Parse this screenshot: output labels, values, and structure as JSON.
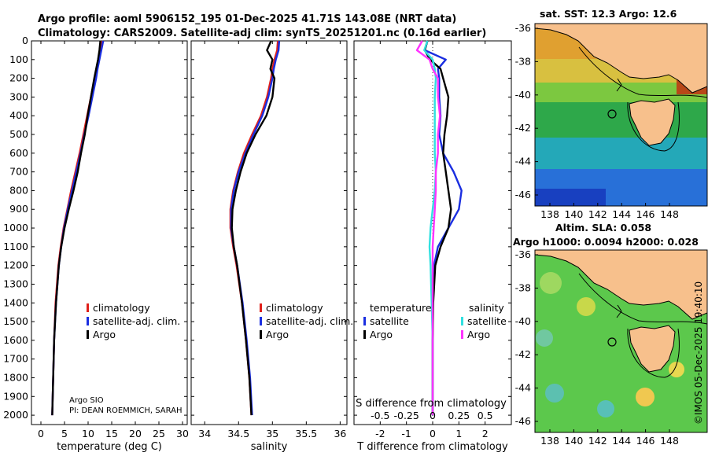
{
  "header": {
    "line1": "Argo profile: aoml 5906152_195 01-Dec-2025 41.71S 143.08E (NRT data)",
    "line2": "Climatology: CARS2009. Satellite-adj clim: synTS_20251201.nc (0.16d earlier)"
  },
  "colors": {
    "climatology": "#e0201a",
    "satellite": "#1a2ee0",
    "argo": "#000000",
    "sat_salinity": "#30e0e0",
    "argo_salinity": "#ff33ff"
  },
  "chart_data": [
    {
      "type": "line",
      "panel": "temperature",
      "xlabel": "temperature (deg C)",
      "xlim": [
        -2,
        31
      ],
      "xticks": [
        0,
        5,
        10,
        15,
        20,
        25,
        30
      ],
      "ylim": [
        2050,
        0
      ],
      "yticks": [
        0,
        100,
        200,
        300,
        400,
        500,
        600,
        700,
        800,
        900,
        1000,
        1100,
        1200,
        1300,
        1400,
        1500,
        1600,
        1700,
        1800,
        1900,
        2000
      ],
      "depth": [
        0,
        50,
        100,
        150,
        200,
        300,
        400,
        500,
        600,
        700,
        800,
        900,
        1000,
        1100,
        1200,
        1400,
        1600,
        1800,
        2000
      ],
      "series": [
        {
          "name": "climatology",
          "color": "#e0201a",
          "values": [
            12.8,
            12.6,
            12.2,
            11.8,
            11.4,
            10.6,
            9.8,
            9.0,
            8.2,
            7.3,
            6.4,
            5.6,
            4.8,
            4.2,
            3.7,
            3.1,
            2.8,
            2.6,
            2.4
          ]
        },
        {
          "name": "satellite-adj. clim.",
          "color": "#1a2ee0",
          "values": [
            13.2,
            12.8,
            12.4,
            12.0,
            11.7,
            10.9,
            10.1,
            9.2,
            8.4,
            7.5,
            6.6,
            5.7,
            4.9,
            4.3,
            3.8,
            3.2,
            2.8,
            2.6,
            2.4
          ]
        },
        {
          "name": "Argo",
          "color": "#000000",
          "values": [
            12.6,
            12.4,
            12.1,
            11.7,
            11.3,
            10.6,
            9.9,
            9.3,
            8.5,
            7.8,
            6.9,
            5.9,
            5.0,
            4.3,
            3.8,
            3.2,
            2.8,
            2.6,
            2.4
          ]
        }
      ],
      "legend": [
        "climatology",
        "satellite-adj. clim.",
        "Argo"
      ],
      "annotation_line1": "Argo SIO",
      "annotation_line2": "PI: DEAN ROEMMICH, SARAH"
    },
    {
      "type": "line",
      "panel": "salinity",
      "xlabel": "salinity",
      "xlim": [
        33.8,
        36.1
      ],
      "xticks": [
        34,
        34.5,
        35,
        35.5,
        36
      ],
      "xtick_labels": [
        "34",
        "34.5",
        "35",
        "35.5",
        "36"
      ],
      "ylim": [
        2050,
        0
      ],
      "depth": [
        0,
        50,
        100,
        150,
        200,
        300,
        400,
        500,
        600,
        700,
        800,
        900,
        1000,
        1100,
        1200,
        1400,
        1600,
        1800,
        2000
      ],
      "series": [
        {
          "name": "climatology",
          "color": "#e0201a",
          "values": [
            35.08,
            35.07,
            35.03,
            35.0,
            34.98,
            34.92,
            34.83,
            34.7,
            34.58,
            34.49,
            34.42,
            34.38,
            34.38,
            34.42,
            34.47,
            34.55,
            34.61,
            34.66,
            34.69
          ]
        },
        {
          "name": "satellite-adj. clim.",
          "color": "#1a2ee0",
          "values": [
            35.1,
            35.09,
            35.05,
            35.02,
            35.0,
            34.94,
            34.85,
            34.72,
            34.6,
            34.5,
            34.43,
            34.39,
            34.39,
            34.43,
            34.48,
            34.56,
            34.62,
            34.67,
            34.7
          ]
        },
        {
          "name": "Argo",
          "color": "#000000",
          "values": [
            34.98,
            34.92,
            35.0,
            34.97,
            35.03,
            35.0,
            34.91,
            34.75,
            34.62,
            34.53,
            34.46,
            34.41,
            34.4,
            34.43,
            34.48,
            34.55,
            34.61,
            34.66,
            34.69
          ]
        }
      ],
      "legend": [
        "climatology",
        "satellite-adj. clim.",
        "Argo"
      ]
    },
    {
      "type": "line",
      "panel": "difference",
      "xlabel": "T difference from climatology",
      "xlim": [
        -3,
        3
      ],
      "xticks": [
        -2,
        -1,
        0,
        1,
        2
      ],
      "top_axis_label": "S difference from climatology",
      "top_ticks": [
        "-0.5",
        "-0.25",
        "0",
        "0.25",
        "0.5"
      ],
      "top_tick_values": [
        -0.5,
        -0.25,
        0,
        0.25,
        0.5
      ],
      "top_xlim": [
        -0.75,
        0.75
      ],
      "ylim": [
        2050,
        0
      ],
      "depth": [
        0,
        50,
        100,
        150,
        200,
        300,
        400,
        500,
        600,
        700,
        800,
        900,
        1000,
        1100,
        1200,
        1400,
        1600,
        1800,
        2000
      ],
      "series": [
        {
          "name": "temperature satellite",
          "color": "#1a2ee0",
          "values": [
            -0.2,
            -0.3,
            0.5,
            0.2,
            0.25,
            0.25,
            0.3,
            0.25,
            0.4,
            0.8,
            1.1,
            1.0,
            0.6,
            0.2,
            0.05,
            0.0,
            0.0,
            0.0,
            0.0
          ]
        },
        {
          "name": "temperature Argo",
          "color": "#000000",
          "values": [
            -0.2,
            -0.3,
            -0.1,
            0.3,
            0.4,
            0.6,
            0.55,
            0.45,
            0.4,
            0.5,
            0.6,
            0.7,
            0.6,
            0.3,
            0.1,
            0.02,
            0.0,
            0.0,
            0.0
          ]
        },
        {
          "name": "salinity satellite",
          "color": "#30e0e0",
          "values": [
            -0.05,
            -0.08,
            0.0,
            0.02,
            0.03,
            0.02,
            0.02,
            0.02,
            0.02,
            0.03,
            0.02,
            0.0,
            -0.02,
            -0.03,
            -0.02,
            -0.01,
            0.0,
            0.0,
            0.0
          ]
        },
        {
          "name": "salinity Argo",
          "color": "#ff33ff",
          "values": [
            -0.1,
            -0.15,
            -0.03,
            0.0,
            0.05,
            0.05,
            0.07,
            0.05,
            0.05,
            0.03,
            0.03,
            0.02,
            0.01,
            0.0,
            0.0,
            0.0,
            0.0,
            0.0,
            0.0
          ]
        }
      ],
      "legend_temperature_title": "temperature",
      "legend_salinity_title": "salinity",
      "legend_temperature": [
        "satellite",
        "Argo"
      ],
      "legend_salinity": [
        "satellite",
        "Argo"
      ]
    }
  ],
  "maps": {
    "sst": {
      "title": "sat. SST: 12.3  Argo: 12.6",
      "yticks": [
        "-36",
        "-38",
        "-40",
        "-42",
        "-44",
        "-46"
      ],
      "xticks": [
        "138",
        "140",
        "142",
        "144",
        "146",
        "148"
      ]
    },
    "sla": {
      "title1": "Altim. SLA: 0.058",
      "title2": "Argo h1000: 0.0094 h2000: 0.028",
      "yticks": [
        "-36",
        "-38",
        "-40",
        "-42",
        "-44",
        "-46"
      ],
      "xticks": [
        "138",
        "140",
        "142",
        "144",
        "146",
        "148"
      ]
    }
  },
  "watermark": "©IMOS 05-Dec-2025 19:40:10"
}
